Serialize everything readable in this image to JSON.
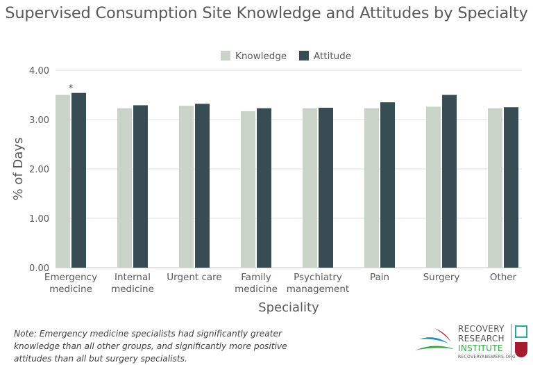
{
  "chart_data": {
    "type": "bar",
    "title": "Supervised Consumption Site Knowledge and Attitudes by Specialty",
    "xlabel": "Speciality",
    "ylabel": "% of Days",
    "ylim": [
      0,
      4
    ],
    "yticks": [
      "0.00",
      "1.00",
      "2.00",
      "3.00",
      "4.00"
    ],
    "grid": true,
    "legend_position": "top-center",
    "categories": [
      [
        "Emergency",
        "medicine"
      ],
      [
        "Internal",
        "medicine"
      ],
      [
        "Urgent care"
      ],
      [
        "Family",
        "medicine"
      ],
      [
        "Psychiatry",
        "management"
      ],
      [
        "Pain"
      ],
      [
        "Surgery"
      ],
      [
        "Other"
      ]
    ],
    "series": [
      {
        "name": "Knowledge",
        "color": "#c9d3c8",
        "values": [
          3.5,
          3.23,
          3.28,
          3.17,
          3.23,
          3.23,
          3.26,
          3.23
        ]
      },
      {
        "name": "Attitude",
        "color": "#374d53",
        "values": [
          3.54,
          3.29,
          3.32,
          3.23,
          3.24,
          3.35,
          3.5,
          3.25
        ]
      }
    ],
    "annotations": [
      {
        "category": "Emergency medicine",
        "text": "*"
      }
    ]
  },
  "note": "Note: Emergency medicine specialists had significantly greater knowledge than all other groups, and significantly more positive attitudes than all but surgery specialists.",
  "logo": {
    "line1": "RECOVERY",
    "line2": "RESEARCH",
    "line3": "INSTITUTE",
    "url": "RECOVERYANSWERS.ORG"
  }
}
